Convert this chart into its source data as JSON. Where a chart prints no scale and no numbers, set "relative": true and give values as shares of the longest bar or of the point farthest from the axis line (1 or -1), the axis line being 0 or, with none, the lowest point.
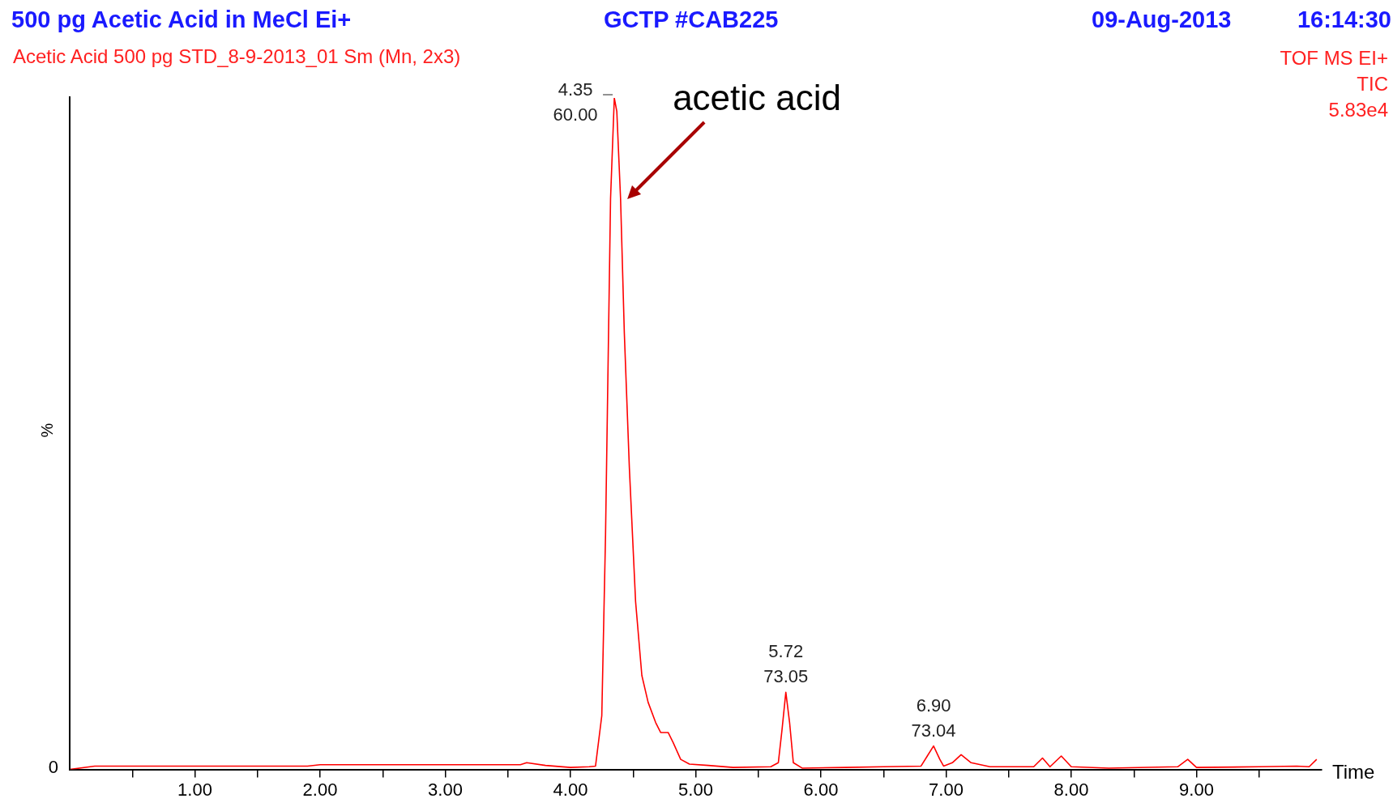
{
  "chart_data": {
    "type": "line",
    "title": "500 pg Acetic Acid in MeCl Ei+",
    "subtitle": "Acetic Acid 500 pg STD_8-9-2013_01 Sm (Mn, 2x3)",
    "xlabel": "Time",
    "ylabel": "%",
    "relative": true,
    "annotations": [
      "GCTP #CAB225",
      "09-Aug-2013",
      "16:14:30",
      "TOF MS EI+",
      "TIC",
      "5.83e4",
      "0",
      "acetic acid",
      {
        "text": "4.35\n60.00",
        "x": 4.35,
        "y": 1
      },
      {
        "text": "5.72\n73.05",
        "x": 5.72,
        "y": 0.115
      },
      {
        "text": "6.90\n73.04",
        "x": 6.9,
        "y": 0.035
      }
    ],
    "xlim": [
      0,
      10
    ],
    "xticks": [
      {
        "value": 0.5,
        "label": null
      },
      {
        "value": 1,
        "label": "1.00"
      },
      {
        "value": 1.5,
        "label": null
      },
      {
        "value": 2,
        "label": "2.00"
      },
      {
        "value": 2.5,
        "label": null
      },
      {
        "value": 3,
        "label": "3.00"
      },
      {
        "value": 3.5,
        "label": null
      },
      {
        "value": 4,
        "label": "4.00"
      },
      {
        "value": 4.5,
        "label": null
      },
      {
        "value": 5,
        "label": "5.00"
      },
      {
        "value": 5.5,
        "label": null
      },
      {
        "value": 6,
        "label": "6.00"
      },
      {
        "value": 6.5,
        "label": null
      },
      {
        "value": 7,
        "label": "7.00"
      },
      {
        "value": 7.5,
        "label": null
      },
      {
        "value": 8,
        "label": "8.00"
      },
      {
        "value": 8.5,
        "label": null
      },
      {
        "value": 9,
        "label": "9.00"
      },
      {
        "value": 9.5,
        "label": null
      }
    ],
    "grid": false,
    "legend": false,
    "marker": "none",
    "line_style": "solid",
    "series": [
      {
        "color": "#ff0000",
        "x": [
          0,
          0.2,
          1.9,
          2.0,
          3.6,
          3.65,
          3.8,
          4.0,
          4.15,
          4.2,
          4.25,
          4.28,
          4.3,
          4.32,
          4.35,
          4.37,
          4.4,
          4.43,
          4.47,
          4.52,
          4.57,
          4.62,
          4.68,
          4.72,
          4.78,
          4.82,
          4.88,
          4.95,
          5.1,
          5.3,
          5.6,
          5.66,
          5.69,
          5.72,
          5.75,
          5.78,
          5.85,
          6.2,
          6.5,
          6.8,
          6.85,
          6.9,
          6.95,
          6.98,
          7.05,
          7.12,
          7.2,
          7.35,
          7.7,
          7.77,
          7.83,
          7.92,
          8.0,
          8.3,
          8.85,
          8.93,
          9.0,
          9.5,
          9.8,
          9.9,
          9.96
        ],
        "values": [
          0,
          0.005,
          0.005,
          0.007,
          0.007,
          0.01,
          0.006,
          0.003,
          0.004,
          0.005,
          0.08,
          0.35,
          0.6,
          0.85,
          1.0,
          0.98,
          0.85,
          0.65,
          0.45,
          0.25,
          0.14,
          0.1,
          0.07,
          0.055,
          0.055,
          0.04,
          0.015,
          0.008,
          0.006,
          0.003,
          0.004,
          0.01,
          0.06,
          0.115,
          0.07,
          0.01,
          0.002,
          0.003,
          0.004,
          0.005,
          0.02,
          0.035,
          0.015,
          0.005,
          0.01,
          0.022,
          0.01,
          0.004,
          0.004,
          0.017,
          0.004,
          0.02,
          0.004,
          0.002,
          0.004,
          0.015,
          0.003,
          0.004,
          0.005,
          0.004,
          0.015
        ]
      }
    ]
  }
}
